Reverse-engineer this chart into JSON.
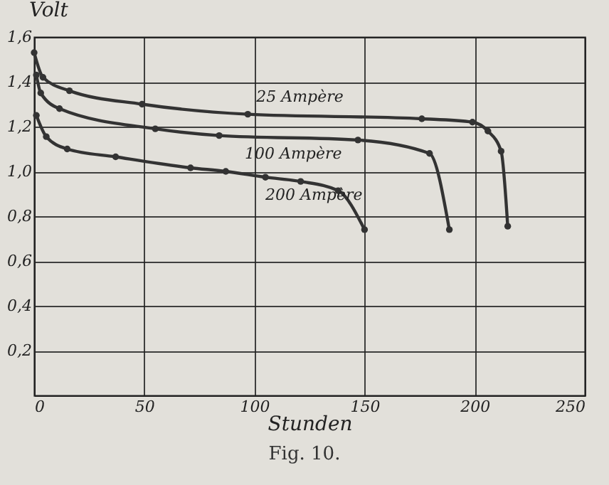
{
  "chart_data": {
    "type": "line",
    "xlabel": "Stunden",
    "ylabel": "Volt",
    "annotations": [
      "Fig. 10."
    ],
    "xlim": [
      0,
      250
    ],
    "xticks": [
      0,
      50,
      100,
      150,
      200,
      250
    ],
    "ylim": [
      0,
      1.6
    ],
    "yticks": [
      {
        "value": 0.2,
        "label": "0,2"
      },
      {
        "value": 0.4,
        "label": "0,4"
      },
      {
        "value": 0.6,
        "label": "0,6"
      },
      {
        "value": 0.8,
        "label": "0,8"
      },
      {
        "value": 1.0,
        "label": "1,0"
      },
      {
        "value": 1.2,
        "label": "1,2"
      },
      {
        "value": 1.4,
        "label": "1,4"
      },
      {
        "value": 1.6,
        "label": "1,6"
      }
    ],
    "grid": true,
    "legend": false,
    "marker": "circle",
    "line_style": "solid",
    "series": [
      {
        "name": "25 Ampère",
        "color": "#333333",
        "x": [
          0,
          4,
          16,
          49,
          97,
          176,
          199,
          206,
          212,
          215
        ],
        "values": [
          1.53,
          1.42,
          1.36,
          1.3,
          1.255,
          1.235,
          1.22,
          1.18,
          1.09,
          0.755
        ]
      },
      {
        "name": "100 Ampère",
        "color": "#333333",
        "x": [
          1,
          3,
          11.5,
          55,
          84,
          147,
          179.5,
          188.5
        ],
        "values": [
          1.43,
          1.35,
          1.28,
          1.19,
          1.16,
          1.14,
          1.08,
          0.74
        ]
      },
      {
        "name": "200 Ampère",
        "color": "#333333",
        "x": [
          1,
          5.5,
          15,
          37,
          71,
          87,
          105,
          121,
          138,
          150
        ],
        "values": [
          1.25,
          1.155,
          1.1,
          1.065,
          1.016,
          1.0,
          0.974,
          0.955,
          0.914,
          0.74
        ]
      }
    ]
  }
}
